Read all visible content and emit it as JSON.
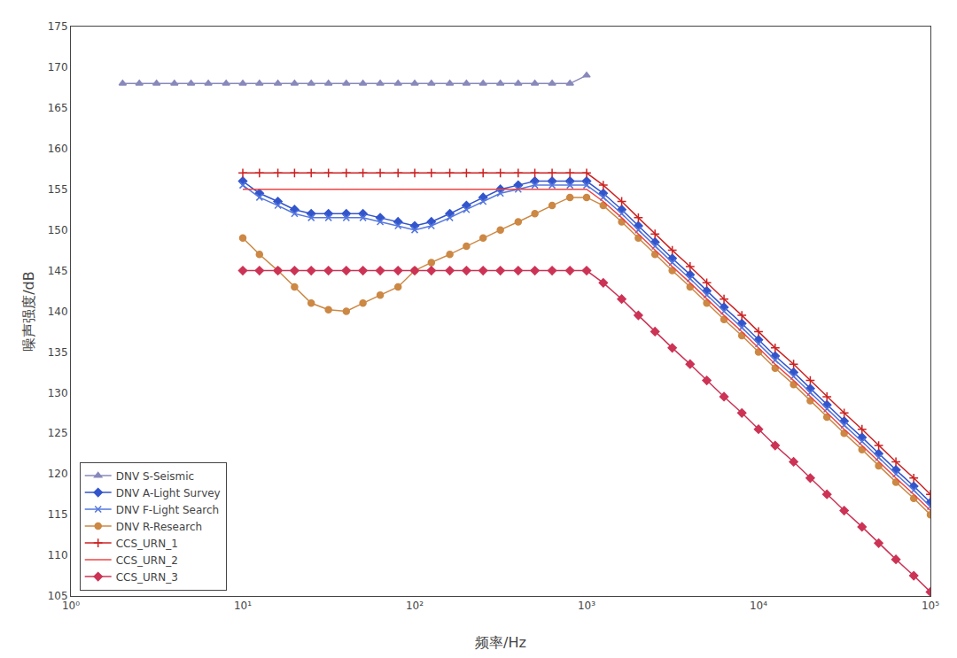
{
  "chart_data": {
    "type": "line",
    "xlabel": "频率/Hz",
    "ylabel": "噪声强度/dB",
    "log": "x",
    "xlim": [
      1.0,
      100000.0
    ],
    "ylim": [
      105,
      175
    ],
    "xticks": [
      {
        "value": 1,
        "label": "10⁰"
      },
      {
        "value": 10,
        "label": "10¹"
      },
      {
        "value": 100,
        "label": "10²"
      },
      {
        "value": 1000,
        "label": "10³"
      },
      {
        "value": 10000,
        "label": "10⁴"
      },
      {
        "value": 100000,
        "label": "10⁵"
      }
    ],
    "yticks": [
      105,
      110,
      115,
      120,
      125,
      130,
      135,
      140,
      145,
      150,
      155,
      160,
      165,
      170,
      175
    ],
    "grid": false,
    "legend": "lower left",
    "series": [
      {
        "name": "DNV S-Seismic",
        "color": "#8888bb",
        "marker": "triangle",
        "x": [
          2,
          2.5,
          3.15,
          4,
          5,
          6.3,
          8,
          10,
          12.5,
          16,
          20,
          25,
          31.5,
          40,
          50,
          63,
          80,
          100,
          125,
          160,
          200,
          250,
          315,
          400,
          500,
          630,
          800,
          1000
        ],
        "values": [
          168,
          168,
          168,
          168,
          168,
          168,
          168,
          168,
          168,
          168,
          168,
          168,
          168,
          168,
          168,
          168,
          168,
          168,
          168,
          168,
          168,
          168,
          168,
          168,
          168,
          168,
          168,
          169
        ]
      },
      {
        "name": "DNV A-Light Survey",
        "color": "#3355cc",
        "marker": "diamond",
        "x": [
          10,
          12.5,
          16,
          20,
          25,
          31.5,
          40,
          50,
          63,
          80,
          100,
          125,
          160,
          200,
          250,
          315,
          400,
          500,
          630,
          800,
          1000,
          1250,
          1600,
          2000,
          2500,
          3150,
          4000,
          5000,
          6300,
          8000,
          10000,
          12500,
          16000,
          20000,
          25000,
          31500,
          40000,
          50000,
          63000,
          80000,
          100000
        ],
        "values": [
          156,
          154.5,
          153.5,
          152.5,
          152,
          152,
          152,
          152,
          151.5,
          151,
          150.5,
          151,
          152,
          153,
          154,
          155,
          155.5,
          156,
          156,
          156,
          156,
          154.5,
          152.5,
          150.5,
          148.5,
          146.5,
          144.5,
          142.5,
          140.5,
          138.5,
          136.5,
          134.5,
          132.5,
          130.5,
          128.5,
          126.5,
          124.5,
          122.5,
          120.5,
          118.5,
          116.5
        ]
      },
      {
        "name": "DNV F-Light Search",
        "color": "#5577dd",
        "marker": "x",
        "x": [
          10,
          12.5,
          16,
          20,
          25,
          31.5,
          40,
          50,
          63,
          80,
          100,
          125,
          160,
          200,
          250,
          315,
          400,
          500,
          630,
          800,
          1000,
          1250,
          1600,
          2000,
          2500,
          3150,
          4000,
          5000,
          6300,
          8000,
          10000,
          12500,
          16000,
          20000,
          25000,
          31500,
          40000,
          50000,
          63000,
          80000,
          100000
        ],
        "values": [
          155.5,
          154,
          153,
          152,
          151.5,
          151.5,
          151.5,
          151.5,
          151,
          150.5,
          150,
          150.5,
          151.5,
          152.5,
          153.5,
          154.5,
          155,
          155.5,
          155.5,
          155.5,
          155.5,
          154,
          152,
          150,
          148,
          146,
          144,
          142,
          140,
          138,
          136,
          134,
          132,
          130,
          128,
          126,
          124,
          122,
          120,
          118,
          116
        ]
      },
      {
        "name": "DNV R-Research",
        "color": "#cc8844",
        "marker": "circle",
        "x": [
          10,
          12.5,
          16,
          20,
          25,
          31.5,
          40,
          50,
          63,
          80,
          100,
          125,
          160,
          200,
          250,
          315,
          400,
          500,
          630,
          800,
          1000,
          1250,
          1600,
          2000,
          2500,
          3150,
          4000,
          5000,
          6300,
          8000,
          10000,
          12500,
          16000,
          20000,
          25000,
          31500,
          40000,
          50000,
          63000,
          80000,
          100000
        ],
        "values": [
          149,
          147,
          145,
          143,
          141,
          140.2,
          140,
          141,
          142,
          143,
          145,
          146,
          147,
          148,
          149,
          150,
          151,
          152,
          153,
          154,
          154,
          153,
          151,
          149,
          147,
          145,
          143,
          141,
          139,
          137,
          135,
          133,
          131,
          129,
          127,
          125,
          123,
          121,
          119,
          117,
          115
        ]
      },
      {
        "name": "CCS_URN_1",
        "color": "#cc2222",
        "marker": "plus",
        "x": [
          10,
          12.5,
          16,
          20,
          25,
          31.5,
          40,
          50,
          63,
          80,
          100,
          125,
          160,
          200,
          250,
          315,
          400,
          500,
          630,
          800,
          1000,
          1250,
          1600,
          2000,
          2500,
          3150,
          4000,
          5000,
          6300,
          8000,
          10000,
          12500,
          16000,
          20000,
          25000,
          31500,
          40000,
          50000,
          63000,
          80000,
          100000
        ],
        "values": [
          157,
          157,
          157,
          157,
          157,
          157,
          157,
          157,
          157,
          157,
          157,
          157,
          157,
          157,
          157,
          157,
          157,
          157,
          157,
          157,
          157,
          155.5,
          153.5,
          151.5,
          149.5,
          147.5,
          145.5,
          143.5,
          141.5,
          139.5,
          137.5,
          135.5,
          133.5,
          131.5,
          129.5,
          127.5,
          125.5,
          123.5,
          121.5,
          119.5,
          117.5
        ]
      },
      {
        "name": "CCS_URN_2",
        "color": "#ee4444",
        "x": [
          10,
          12.5,
          16,
          20,
          25,
          31.5,
          40,
          50,
          63,
          80,
          100,
          125,
          160,
          200,
          250,
          315,
          400,
          500,
          630,
          800,
          1000,
          1250,
          1600,
          2000,
          2500,
          3150,
          4000,
          5000,
          6300,
          8000,
          10000,
          12500,
          16000,
          20000,
          25000,
          31500,
          40000,
          50000,
          63000,
          80000,
          100000
        ],
        "values": [
          155,
          155,
          155,
          155,
          155,
          155,
          155,
          155,
          155,
          155,
          155,
          155,
          155,
          155,
          155,
          155,
          155,
          155,
          155,
          155,
          155,
          153.5,
          151.5,
          149.5,
          147.5,
          145.5,
          143.5,
          141.5,
          139.5,
          137.5,
          135.5,
          133.5,
          131.5,
          129.5,
          127.5,
          125.5,
          123.5,
          121.5,
          119.5,
          117.5,
          115.5
        ]
      },
      {
        "name": "CCS_URN_3",
        "color": "#cc3355",
        "marker": "diamond",
        "x": [
          10,
          12.5,
          16,
          20,
          25,
          31.5,
          40,
          50,
          63,
          80,
          100,
          125,
          160,
          200,
          250,
          315,
          400,
          500,
          630,
          800,
          1000,
          1250,
          1600,
          2000,
          2500,
          3150,
          4000,
          5000,
          6300,
          8000,
          10000,
          12500,
          16000,
          20000,
          25000,
          31500,
          40000,
          50000,
          63000,
          80000,
          100000
        ],
        "values": [
          145,
          145,
          145,
          145,
          145,
          145,
          145,
          145,
          145,
          145,
          145,
          145,
          145,
          145,
          145,
          145,
          145,
          145,
          145,
          145,
          145,
          143.5,
          141.5,
          139.5,
          137.5,
          135.5,
          133.5,
          131.5,
          129.5,
          127.5,
          125.5,
          123.5,
          121.5,
          119.5,
          117.5,
          115.5,
          113.5,
          111.5,
          109.5,
          107.5,
          105.5
        ]
      }
    ]
  }
}
